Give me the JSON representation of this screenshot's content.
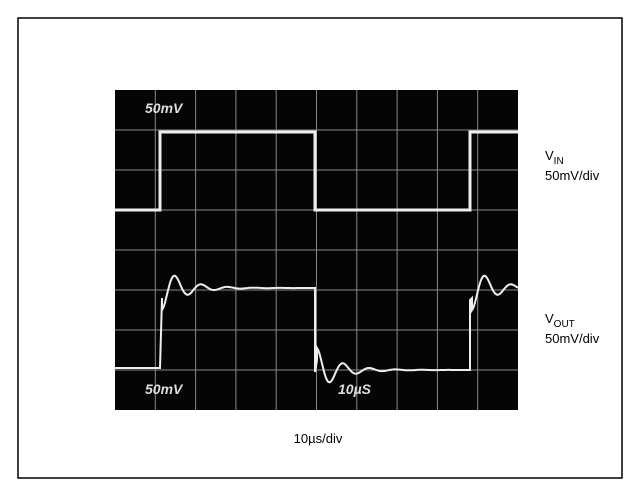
{
  "screen": {
    "top_label": "50mV",
    "bottom_label": "50mV",
    "time_label": "10µS"
  },
  "traces": [
    {
      "name": {
        "main": "V",
        "sub": "IN"
      },
      "scale": "50mV/div"
    },
    {
      "name": {
        "main": "V",
        "sub": "OUT"
      },
      "scale": "50mV/div"
    }
  ],
  "x_caption": "10µs/div"
}
